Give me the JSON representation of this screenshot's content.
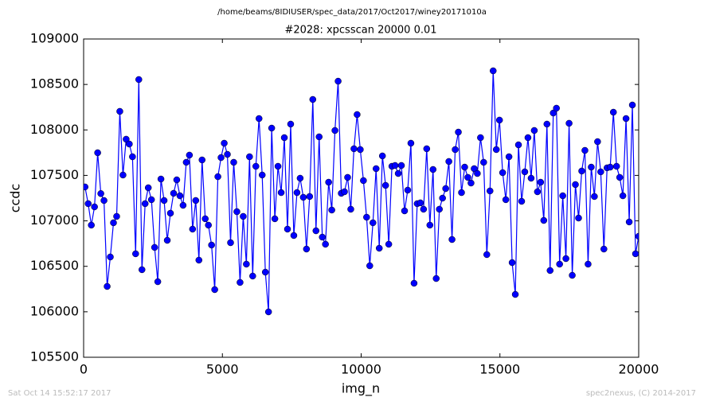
{
  "chart_data": {
    "type": "line",
    "header": "/home/beams/8IDIUSER/spec_data/2017/Oct2017/winey20171010a",
    "title": "#2028: xpcsscan 20000 0.01",
    "xlabel": "img_n",
    "ylabel": "ccdc",
    "footer_left": "Sat Oct 14 15:52:17 2017",
    "footer_right": "spec2nexus, (C) 2014-2017",
    "color": "#0000ff",
    "marker": "circle",
    "xlim": [
      0,
      20000
    ],
    "xticks": [
      0,
      5000,
      10000,
      15000,
      20000
    ],
    "ylim": [
      105500,
      109000
    ],
    "yticks": [
      105500,
      106000,
      106500,
      107000,
      107500,
      108000,
      108500,
      109000
    ],
    "grid": false,
    "x": [
      50,
      164,
      278,
      392,
      506,
      620,
      734,
      848,
      962,
      1076,
      1190,
      1304,
      1418,
      1532,
      1646,
      1760,
      1874,
      1988,
      2102,
      2216,
      2330,
      2444,
      2558,
      2672,
      2786,
      2900,
      3014,
      3128,
      3242,
      3356,
      3470,
      3584,
      3698,
      3812,
      3926,
      4040,
      4154,
      4268,
      4382,
      4496,
      4610,
      4724,
      4838,
      4952,
      5066,
      5180,
      5294,
      5408,
      5522,
      5636,
      5750,
      5864,
      5978,
      6092,
      6206,
      6320,
      6434,
      6548,
      6662,
      6776,
      6890,
      7004,
      7118,
      7232,
      7346,
      7460,
      7574,
      7688,
      7802,
      7916,
      8030,
      8144,
      8258,
      8372,
      8486,
      8600,
      8714,
      8828,
      8942,
      9056,
      9170,
      9284,
      9398,
      9512,
      9626,
      9740,
      9854,
      9968,
      10082,
      10196,
      10310,
      10424,
      10538,
      10652,
      10766,
      10880,
      10994,
      11108,
      11222,
      11336,
      11450,
      11564,
      11678,
      11792,
      11906,
      12020,
      12134,
      12248,
      12362,
      12476,
      12590,
      12704,
      12818,
      12932,
      13046,
      13160,
      13274,
      13388,
      13502,
      13616,
      13730,
      13844,
      13958,
      14072,
      14186,
      14300,
      14414,
      14528,
      14642,
      14756,
      14870,
      14984,
      15098,
      15212,
      15326,
      15440,
      15554,
      15668,
      15782,
      15896,
      16010,
      16124,
      16238,
      16352,
      16466,
      16580,
      16694,
      16808,
      16922,
      17036,
      17150,
      17264,
      17378,
      17492,
      17606,
      17720,
      17834,
      17948,
      18062,
      18176,
      18290,
      18404,
      18518,
      18632,
      18746,
      18860,
      18974,
      19088,
      19202,
      19316,
      19430,
      19544,
      19658,
      19772,
      19886,
      20000
    ],
    "values": [
      107373,
      107189,
      106953,
      107154,
      107749,
      107300,
      107224,
      106279,
      106603,
      106979,
      107049,
      108204,
      107504,
      107898,
      107845,
      107705,
      106638,
      108554,
      106463,
      107189,
      107364,
      107233,
      106708,
      106331,
      107460,
      107224,
      106786,
      107084,
      107303,
      107451,
      107276,
      107171,
      107644,
      107723,
      106909,
      107224,
      106568,
      107670,
      107023,
      106953,
      106734,
      106244,
      107486,
      107696,
      107854,
      107731,
      106760,
      107644,
      107101,
      106323,
      107049,
      106524,
      107705,
      106393,
      107600,
      108125,
      107504,
      106436,
      105999,
      108020,
      107023,
      107600,
      107311,
      107915,
      106909,
      108064,
      106839,
      107311,
      107469,
      107259,
      106690,
      107268,
      108335,
      106891,
      107924,
      106821,
      106743,
      107425,
      107119,
      107994,
      108536,
      107303,
      107320,
      107478,
      107128,
      107793,
      108169,
      107784,
      107443,
      107040,
      106506,
      106979,
      107574,
      106699,
      107714,
      107390,
      106743,
      107600,
      107609,
      107521,
      107609,
      107110,
      107338,
      107854,
      106314,
      107189,
      107198,
      107128,
      107793,
      106953,
      107565,
      106366,
      107128,
      107250,
      107355,
      107653,
      106795,
      107784,
      107976,
      107311,
      107591,
      107478,
      107416,
      107574,
      107521,
      107915,
      107644,
      106629,
      107329,
      108650,
      107784,
      108108,
      107530,
      107233,
      107705,
      106541,
      106191,
      107836,
      107215,
      107539,
      107915,
      107469,
      107994,
      107320,
      107425,
      107005,
      108064,
      106454,
      108186,
      108239,
      106524,
      107276,
      106585,
      108073,
      106401,
      107399,
      107031,
      107548,
      107775,
      106524,
      107591,
      107268,
      107871,
      107539,
      106690,
      107583,
      107591,
      108195,
      107600,
      107478,
      107276,
      108125,
      106988,
      108274,
      106638,
      106830
    ]
  }
}
